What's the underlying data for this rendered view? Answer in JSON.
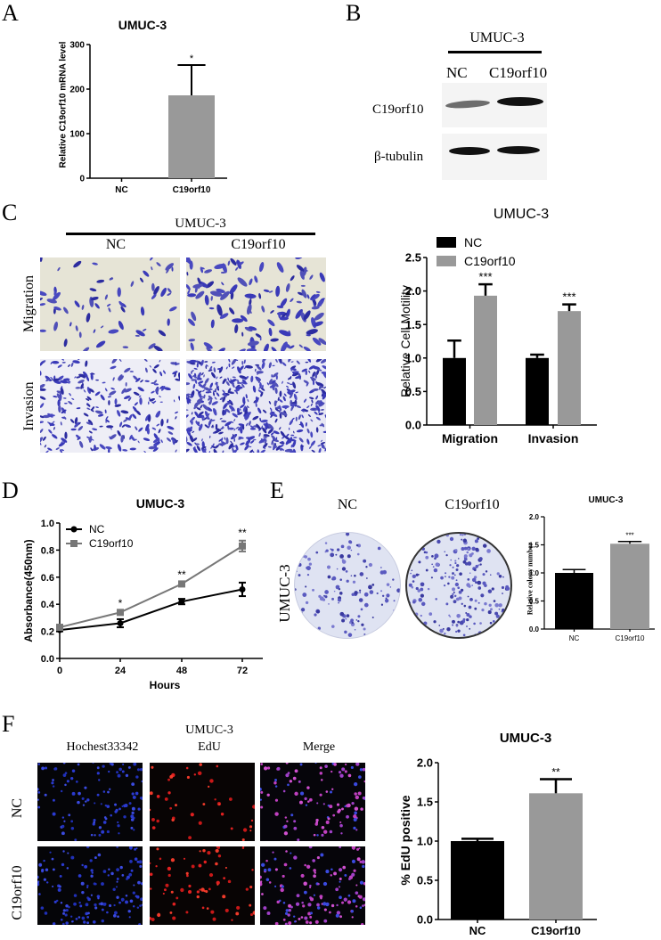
{
  "figure": {
    "panels": {
      "A": {
        "label": "A",
        "title": "UMUC-3",
        "ylabel": "Relative C19orf10 mRNA level"
      },
      "B": {
        "label": "B",
        "header": "UMUC-3",
        "lanes": [
          "NC",
          "C19orf10"
        ],
        "rows": [
          "C19orf10",
          "β-tubulin"
        ]
      },
      "C": {
        "label": "C",
        "header": "UMUC-3",
        "columns": [
          "NC",
          "C19orf10"
        ],
        "rows": [
          "Migration",
          "Invasion"
        ],
        "chart_title": "UMUC-3",
        "ylabel": "Relative Cell Motility"
      },
      "D": {
        "label": "D",
        "title": "UMUC-3",
        "ylabel": "Absorbance(450nm)",
        "xlabel": "Hours"
      },
      "E": {
        "label": "E",
        "columns": [
          "NC",
          "C19orf10"
        ],
        "row_label": "UMUC-3",
        "chart_title": "UMUC-3",
        "ylabel": "Relative colony number"
      },
      "F": {
        "label": "F",
        "header": "UMUC-3",
        "columns": [
          "Hochest33342",
          "EdU",
          "Merge"
        ],
        "rows": [
          "NC",
          "C19orf10"
        ],
        "chart_title": "UMUC-3",
        "ylabel": "% EdU positive"
      }
    },
    "colors": {
      "nc": "#000000",
      "c19orf10": "#999999",
      "line_c19": "#777777",
      "stain": "#3a3aa8",
      "hoechst": "#2a3ad0",
      "edu": "#e02020"
    }
  },
  "chart_data": [
    {
      "id": "A",
      "type": "bar",
      "title": "UMUC-3",
      "xlabel": "",
      "ylabel": "Relative C19orf10 mRNA level",
      "categories": [
        "NC",
        "C19orf10"
      ],
      "values": [
        1,
        186
      ],
      "errors": [
        0,
        68
      ],
      "significance": [
        "",
        "*"
      ],
      "yticks": [
        0,
        100,
        200,
        300
      ],
      "ylim": [
        0,
        300
      ],
      "colors": [
        "#000000",
        "#999999"
      ]
    },
    {
      "id": "C",
      "type": "bar",
      "title": "UMUC-3",
      "xlabel": "",
      "ylabel": "Relative Cell Motility",
      "categories": [
        "Migration",
        "Invasion"
      ],
      "series": [
        {
          "name": "NC",
          "values": [
            1.0,
            1.0
          ],
          "errors": [
            0.26,
            0.05
          ],
          "color": "#000000"
        },
        {
          "name": "C19orf10",
          "values": [
            1.93,
            1.7
          ],
          "errors": [
            0.17,
            0.1
          ],
          "color": "#999999"
        }
      ],
      "significance": [
        "***",
        "***"
      ],
      "yticks": [
        "0.0",
        "0.5",
        "1.0",
        "1.5",
        "2.0",
        "2.5"
      ],
      "ylim": [
        0,
        2.5
      ],
      "legend_position": "top-left"
    },
    {
      "id": "D",
      "type": "line",
      "title": "UMUC-3",
      "xlabel": "Hours",
      "ylabel": "Absorbance(450nm)",
      "x": [
        0,
        24,
        48,
        72
      ],
      "series": [
        {
          "name": "NC",
          "values": [
            0.21,
            0.26,
            0.42,
            0.51
          ],
          "errors": [
            0.01,
            0.03,
            0.02,
            0.05
          ],
          "marker": "circle",
          "color": "#000000"
        },
        {
          "name": "C19orf10",
          "values": [
            0.23,
            0.34,
            0.55,
            0.83
          ],
          "errors": [
            0.01,
            0.01,
            0.01,
            0.04
          ],
          "marker": "square",
          "color": "#777777"
        }
      ],
      "significance": [
        "",
        "*",
        "**",
        "**"
      ],
      "xticks": [
        "0",
        "24",
        "48",
        "72"
      ],
      "yticks": [
        "0.0",
        "0.2",
        "0.4",
        "0.6",
        "0.8",
        "1.0"
      ],
      "ylim": [
        0,
        1.0
      ],
      "legend_position": "top-left"
    },
    {
      "id": "E",
      "type": "bar",
      "title": "UMUC-3",
      "xlabel": "",
      "ylabel": "Relative colony number",
      "categories": [
        "NC",
        "C19orf10"
      ],
      "values": [
        1.0,
        1.52
      ],
      "errors": [
        0.06,
        0.04
      ],
      "significance": [
        "",
        "***"
      ],
      "yticks": [
        "0.0",
        "0.5",
        "1.0",
        "1.5",
        "2.0"
      ],
      "ylim": [
        0,
        2.0
      ],
      "colors": [
        "#000000",
        "#999999"
      ]
    },
    {
      "id": "F",
      "type": "bar",
      "title": "UMUC-3",
      "xlabel": "",
      "ylabel": "% EdU positive",
      "categories": [
        "NC",
        "C19orf10"
      ],
      "values": [
        1.0,
        1.61
      ],
      "errors": [
        0.03,
        0.18
      ],
      "significance": [
        "",
        "**"
      ],
      "yticks": [
        "0.0",
        "0.5",
        "1.0",
        "1.5",
        "2.0"
      ],
      "ylim": [
        0,
        2.0
      ],
      "colors": [
        "#000000",
        "#999999"
      ]
    }
  ]
}
